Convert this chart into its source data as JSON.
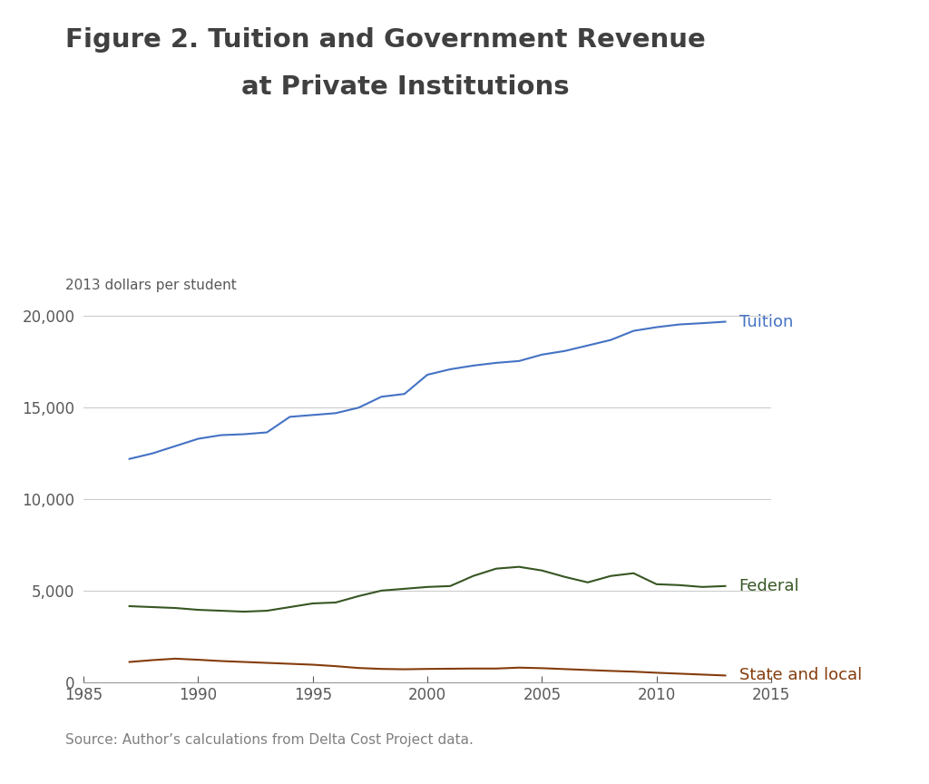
{
  "title_line1": "Figure 2. Tuition and Government Revenue",
  "title_line2": "at Private Institutions",
  "ylabel": "2013 dollars per student",
  "source": "Source: Author’s calculations from Delta Cost Project data.",
  "xlim": [
    1985,
    2015
  ],
  "ylim": [
    0,
    21000
  ],
  "yticks": [
    0,
    5000,
    10000,
    15000,
    20000
  ],
  "xticks": [
    1985,
    1990,
    1995,
    2000,
    2005,
    2010,
    2015
  ],
  "tuition_years": [
    1987,
    1988,
    1989,
    1990,
    1991,
    1992,
    1993,
    1994,
    1995,
    1996,
    1997,
    1998,
    1999,
    2000,
    2001,
    2002,
    2003,
    2004,
    2005,
    2006,
    2007,
    2008,
    2009,
    2010,
    2011,
    2012,
    2013
  ],
  "tuition_vals": [
    12200,
    12500,
    12900,
    13300,
    13500,
    13550,
    13650,
    14500,
    14600,
    14700,
    15000,
    15600,
    15750,
    16800,
    17100,
    17300,
    17450,
    17550,
    17900,
    18100,
    18400,
    18700,
    19200,
    19400,
    19550,
    19620,
    19700
  ],
  "federal_vals": [
    4150,
    4100,
    4050,
    3950,
    3900,
    3850,
    3900,
    4100,
    4300,
    4350,
    4700,
    5000,
    5100,
    5200,
    5250,
    5800,
    6200,
    6300,
    6100,
    5750,
    5450,
    5800,
    5950,
    5350,
    5300,
    5200,
    5250
  ],
  "state_vals": [
    1100,
    1200,
    1280,
    1220,
    1150,
    1100,
    1050,
    1000,
    950,
    870,
    770,
    720,
    700,
    720,
    730,
    740,
    740,
    790,
    760,
    710,
    660,
    610,
    570,
    510,
    460,
    410,
    360
  ],
  "tuition_color": "#4472C4",
  "federal_color": "#375623",
  "state_local_color": "#843C0C",
  "line_width": 1.5,
  "grid_color": "#CCCCCC",
  "title_color": "#404040",
  "label_color": "#595959",
  "source_color": "#808080",
  "background_color": "#FFFFFF",
  "tuition_label": "Tuition",
  "federal_label": "Federal",
  "state_label": "State and local"
}
